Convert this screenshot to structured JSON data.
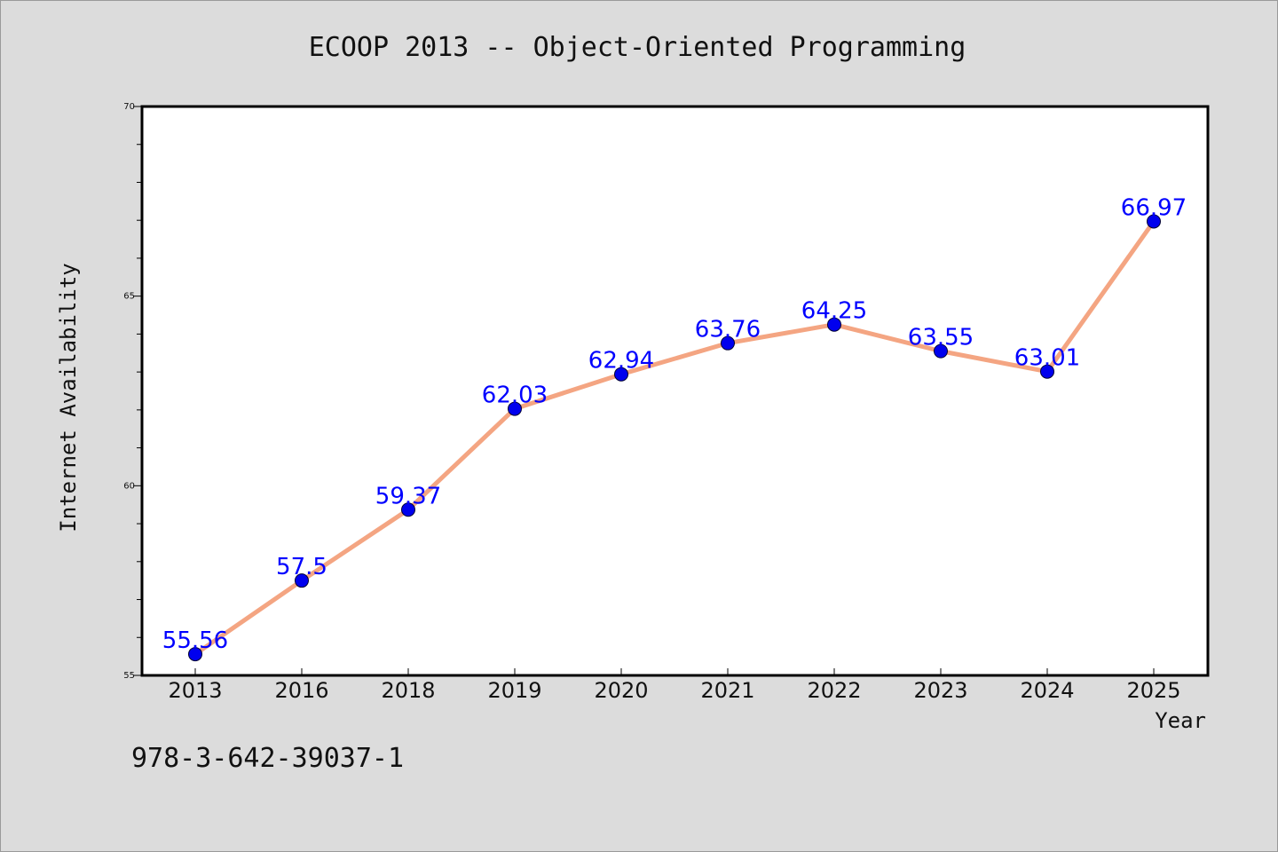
{
  "chart_data": {
    "type": "line",
    "title": "ECOOP 2013 -- Object-Oriented Programming",
    "xlabel": "Year",
    "ylabel": "Internet Availability",
    "categories": [
      "2013",
      "2016",
      "2018",
      "2019",
      "2020",
      "2021",
      "2022",
      "2023",
      "2024",
      "2025"
    ],
    "series": [
      {
        "values": [
          55.56,
          57.5,
          59.37,
          62.03,
          62.94,
          63.76,
          64.25,
          63.55,
          63.01,
          66.97
        ],
        "labels": [
          "55.56",
          "57.5",
          "59.37",
          "62.03",
          "62.94",
          "63.76",
          "64.25",
          "63.55",
          "63.01",
          "66.97"
        ]
      }
    ],
    "ylim": [
      55,
      70
    ],
    "yticks": [
      "55",
      "60",
      "65",
      "70"
    ],
    "ytick_values": [
      55,
      60,
      65,
      70
    ],
    "grid": false,
    "line_color": "#f4a582",
    "marker_color": "#0000ee",
    "label_color": "#0000ff"
  },
  "footnote": "978-3-642-39037-1"
}
